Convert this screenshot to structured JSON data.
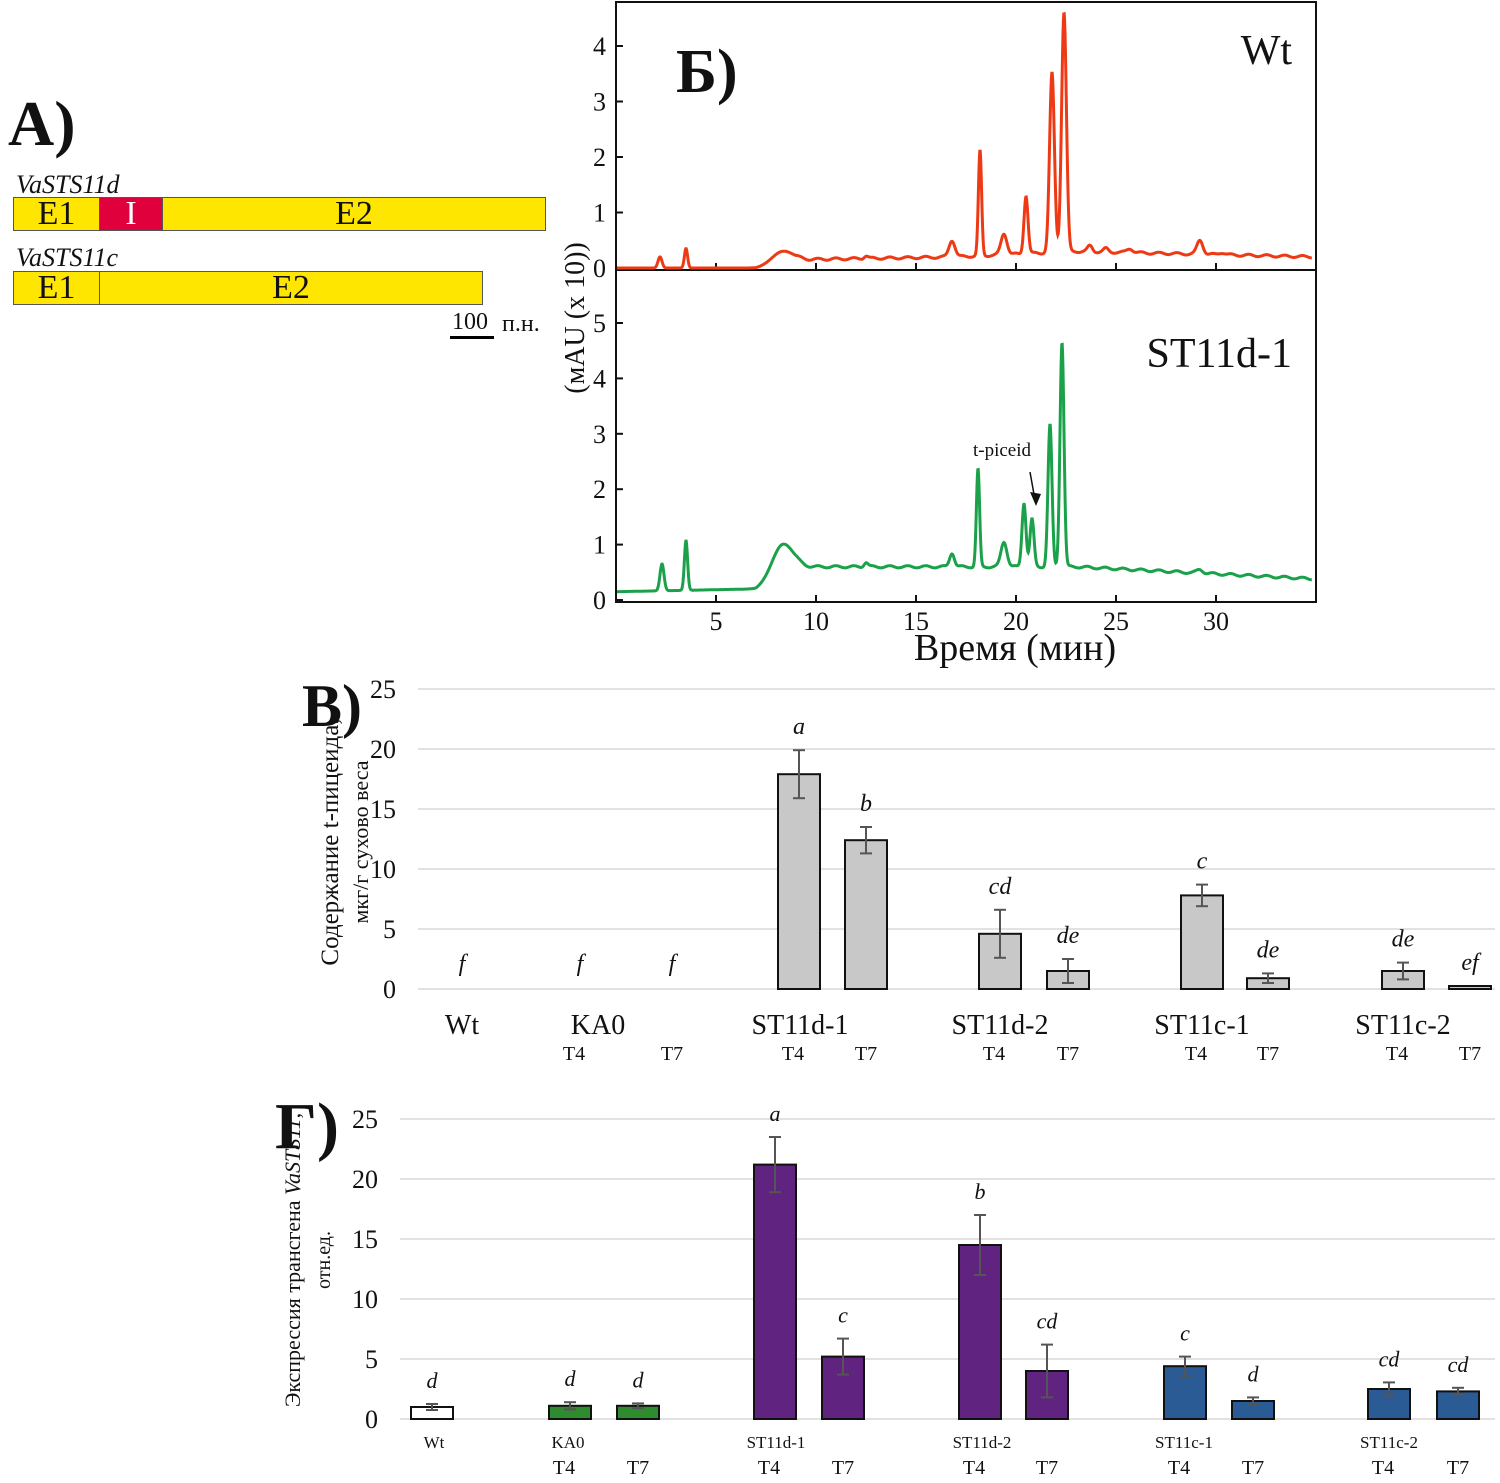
{
  "panel_a": {
    "label": "А)",
    "genes": [
      {
        "name": "VaSTS11d",
        "segments": [
          {
            "label": "E1",
            "type": "exon",
            "bp": 60
          },
          {
            "label": "I",
            "type": "intron",
            "bp": 45
          },
          {
            "label": "E2",
            "type": "exon",
            "bp": 270
          }
        ]
      },
      {
        "name": "VaSTS11c",
        "segments": [
          {
            "label": "E1",
            "type": "exon",
            "bp": 60
          },
          {
            "label": "E2",
            "type": "exon",
            "bp": 270
          }
        ]
      }
    ],
    "scale_bar": {
      "value": "100",
      "unit": "п.н."
    },
    "colors": {
      "exon": "#ffe600",
      "intron": "#e0003c"
    }
  },
  "chart_data": [
    {
      "type": "line",
      "id": "chromatogram",
      "panel_label": "Б)",
      "xlabel": "Время (мин)",
      "ylabel": "(мAU (x 10))",
      "xlim": [
        0,
        35
      ],
      "xticks": [
        5,
        10,
        15,
        20,
        25,
        30
      ],
      "annotation": {
        "text": "t-piceid",
        "x": 20.8
      },
      "series": [
        {
          "name": "Wt",
          "color": "#ee3a14",
          "ylim": [
            0,
            4.7
          ],
          "yticks": [
            0,
            1,
            2,
            3,
            4
          ],
          "peaks": [
            {
              "t": 2.2,
              "h": 0.2,
              "w": 0.1
            },
            {
              "t": 3.5,
              "h": 0.35,
              "w": 0.08
            },
            {
              "t": 8.3,
              "h": 0.3,
              "w": 0.5
            },
            {
              "t": 12.5,
              "h": 0.22,
              "w": 0.1
            },
            {
              "t": 16.8,
              "h": 0.5,
              "w": 0.15
            },
            {
              "t": 18.2,
              "h": 2.1,
              "w": 0.08
            },
            {
              "t": 19.4,
              "h": 0.62,
              "w": 0.15
            },
            {
              "t": 20.5,
              "h": 1.3,
              "w": 0.1
            },
            {
              "t": 21.8,
              "h": 3.5,
              "w": 0.12
            },
            {
              "t": 22.4,
              "h": 4.6,
              "w": 0.12
            },
            {
              "t": 23.7,
              "h": 0.4,
              "w": 0.12
            },
            {
              "t": 24.5,
              "h": 0.35,
              "w": 0.12
            },
            {
              "t": 25.7,
              "h": 0.35,
              "w": 0.15
            },
            {
              "t": 29.2,
              "h": 0.5,
              "w": 0.15
            },
            {
              "t": 30.3,
              "h": 0.28,
              "w": 0.15
            }
          ],
          "baseline": [
            [
              0,
              0.0
            ],
            [
              7,
              0.0
            ],
            [
              9,
              0.15
            ],
            [
              17,
              0.2
            ],
            [
              23,
              0.3
            ],
            [
              35,
              0.2
            ]
          ]
        },
        {
          "name": "ST11d-1",
          "color": "#1aa14a",
          "ylim": [
            0,
            5.9
          ],
          "yticks": [
            0,
            1,
            2,
            3,
            4,
            5
          ],
          "peaks": [
            {
              "t": 2.3,
              "h": 0.65,
              "w": 0.1
            },
            {
              "t": 3.5,
              "h": 1.07,
              "w": 0.08
            },
            {
              "t": 8.3,
              "h": 1.0,
              "w": 0.5
            },
            {
              "t": 12.5,
              "h": 0.68,
              "w": 0.1
            },
            {
              "t": 16.8,
              "h": 0.85,
              "w": 0.12
            },
            {
              "t": 18.1,
              "h": 2.35,
              "w": 0.08
            },
            {
              "t": 19.4,
              "h": 1.05,
              "w": 0.15
            },
            {
              "t": 20.4,
              "h": 1.75,
              "w": 0.1
            },
            {
              "t": 20.8,
              "h": 1.45,
              "w": 0.1
            },
            {
              "t": 21.7,
              "h": 3.15,
              "w": 0.1
            },
            {
              "t": 22.3,
              "h": 4.65,
              "w": 0.1
            },
            {
              "t": 29.2,
              "h": 0.55,
              "w": 0.15
            }
          ],
          "baseline": [
            [
              0,
              0.15
            ],
            [
              7,
              0.2
            ],
            [
              9,
              0.6
            ],
            [
              17,
              0.6
            ],
            [
              23,
              0.6
            ],
            [
              35,
              0.38
            ]
          ]
        }
      ]
    },
    {
      "type": "bar",
      "id": "piceid-content",
      "panel_label": "В)",
      "ylabel": "Содержание t-пицеида, мкг/г сухово веса",
      "ylim": [
        0,
        25
      ],
      "yticks": [
        0,
        5,
        10,
        15,
        20,
        25
      ],
      "grid": true,
      "bar_color": "#c8c8c8",
      "groups": [
        "Wt",
        "KA0",
        "ST11d-1",
        "ST11d-2",
        "ST11c-1",
        "ST11c-2"
      ],
      "bars": [
        {
          "group": "Wt",
          "sub": "",
          "value": 0,
          "err": 0,
          "letter": "f"
        },
        {
          "group": "KA0",
          "sub": "T4",
          "value": 0,
          "err": 0,
          "letter": "f"
        },
        {
          "group": "KA0",
          "sub": "T7",
          "value": 0,
          "err": 0,
          "letter": "f"
        },
        {
          "group": "ST11d-1",
          "sub": "T4",
          "value": 17.9,
          "err": 2.0,
          "letter": "a"
        },
        {
          "group": "ST11d-1",
          "sub": "T7",
          "value": 12.4,
          "err": 1.1,
          "letter": "b"
        },
        {
          "group": "ST11d-2",
          "sub": "T4",
          "value": 4.6,
          "err": 2.0,
          "letter": "cd"
        },
        {
          "group": "ST11d-2",
          "sub": "T7",
          "value": 1.5,
          "err": 1.0,
          "letter": "de"
        },
        {
          "group": "ST11c-1",
          "sub": "T4",
          "value": 7.8,
          "err": 0.9,
          "letter": "c"
        },
        {
          "group": "ST11c-1",
          "sub": "T7",
          "value": 0.9,
          "err": 0.4,
          "letter": "de"
        },
        {
          "group": "ST11c-2",
          "sub": "T4",
          "value": 1.5,
          "err": 0.7,
          "letter": "de"
        },
        {
          "group": "ST11c-2",
          "sub": "T7",
          "value": 0.25,
          "err": 0,
          "letter": "ef"
        }
      ]
    },
    {
      "type": "bar",
      "id": "transgene-expression",
      "panel_label": "Г)",
      "ylabel": "Экспрессия трансгена VaSTS11, отн.ед.",
      "ylim": [
        0,
        25
      ],
      "yticks": [
        0,
        5,
        10,
        15,
        20,
        25
      ],
      "grid": true,
      "groups": [
        "Wt",
        "KA0",
        "ST11d-1",
        "ST11d-2",
        "ST11c-1",
        "ST11c-2"
      ],
      "bars": [
        {
          "group": "Wt",
          "sub": "",
          "value": 1.0,
          "err": 0.25,
          "letter": "d",
          "color": "#ffffff"
        },
        {
          "group": "KA0",
          "sub": "T4",
          "value": 1.1,
          "err": 0.3,
          "letter": "d",
          "color": "#2e8b2e"
        },
        {
          "group": "KA0",
          "sub": "T7",
          "value": 1.1,
          "err": 0.2,
          "letter": "d",
          "color": "#2e8b2e"
        },
        {
          "group": "ST11d-1",
          "sub": "T4",
          "value": 21.2,
          "err": 2.3,
          "letter": "a",
          "color": "#612380"
        },
        {
          "group": "ST11d-1",
          "sub": "T7",
          "value": 5.2,
          "err": 1.5,
          "letter": "c",
          "color": "#612380"
        },
        {
          "group": "ST11d-2",
          "sub": "T4",
          "value": 14.5,
          "err": 2.5,
          "letter": "b",
          "color": "#612380"
        },
        {
          "group": "ST11d-2",
          "sub": "T7",
          "value": 4.0,
          "err": 2.2,
          "letter": "cd",
          "color": "#612380"
        },
        {
          "group": "ST11c-1",
          "sub": "T4",
          "value": 4.4,
          "err": 0.8,
          "letter": "c",
          "color": "#2b5b94"
        },
        {
          "group": "ST11c-1",
          "sub": "T7",
          "value": 1.5,
          "err": 0.3,
          "letter": "d",
          "color": "#2b5b94"
        },
        {
          "group": "ST11c-2",
          "sub": "T4",
          "value": 2.5,
          "err": 0.55,
          "letter": "cd",
          "color": "#2b5b94"
        },
        {
          "group": "ST11c-2",
          "sub": "T7",
          "value": 2.3,
          "err": 0.3,
          "letter": "cd",
          "color": "#2b5b94"
        }
      ]
    }
  ]
}
